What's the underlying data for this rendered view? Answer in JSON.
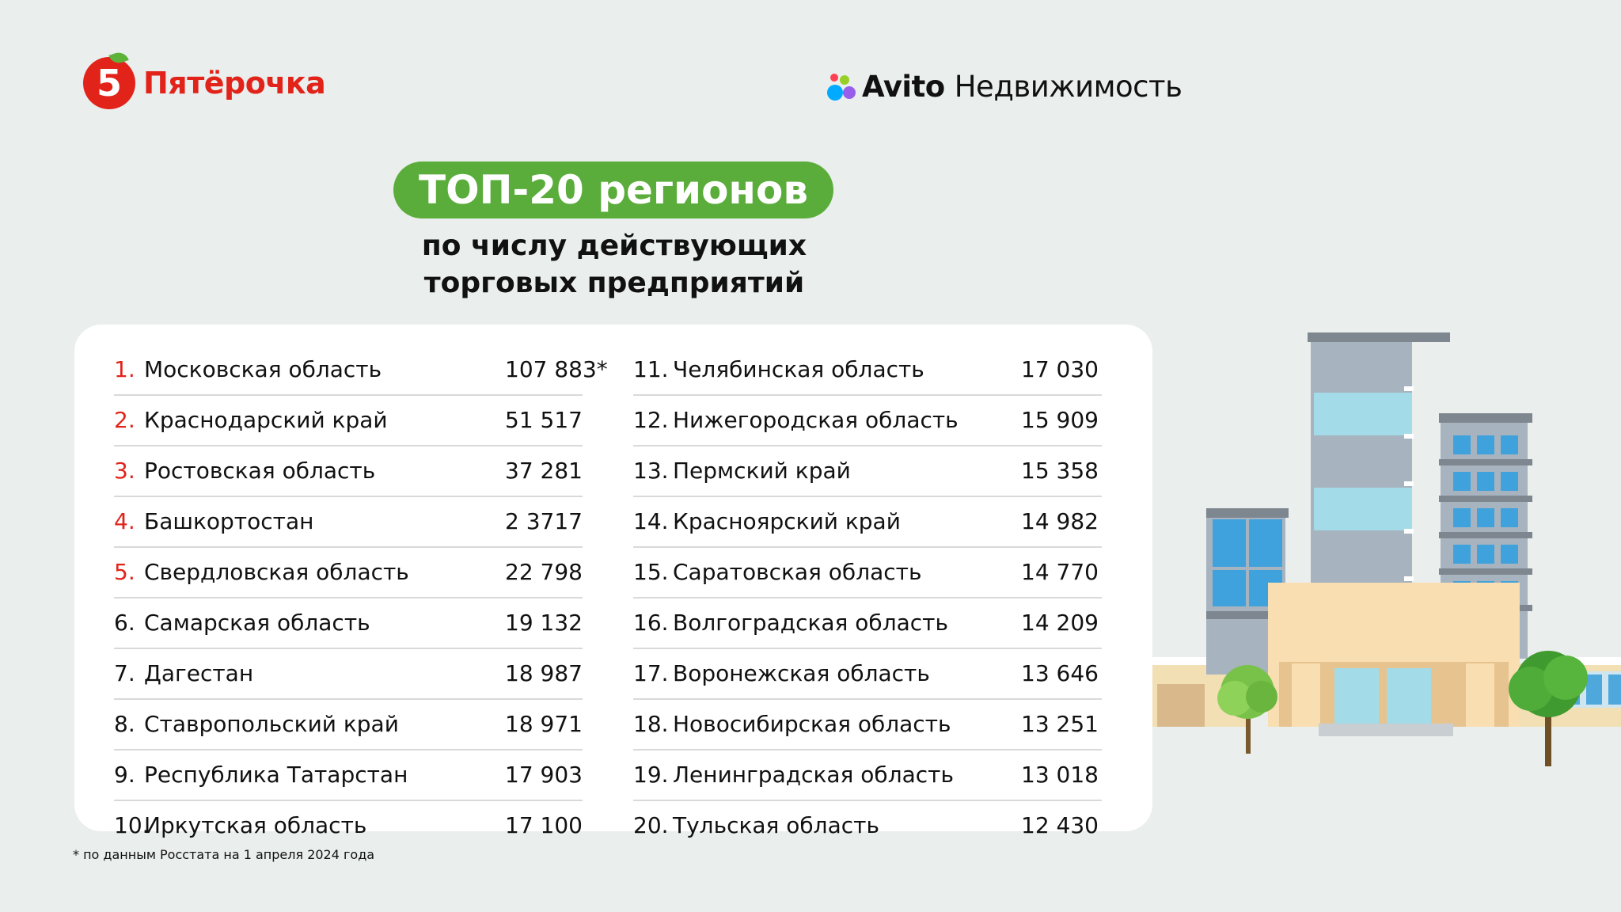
{
  "logos": {
    "pyaterochka": {
      "mark": "5",
      "name": "Пятёрочка"
    },
    "avito": {
      "brand": "Avito",
      "sub": "Недвижимость"
    }
  },
  "heading": {
    "badge": "ТОП-20 регионов",
    "subtitle_line1": "по числу действующих",
    "subtitle_line2": "торговых предприятий"
  },
  "colors": {
    "accent_green": "#5bad3b",
    "brand_red": "#e2231a",
    "background": "#eaeeed"
  },
  "regions_left": [
    {
      "rank": "1.",
      "name": "Московская область",
      "value": "107 883*",
      "rank_color": "red"
    },
    {
      "rank": "2.",
      "name": "Краснодарский край",
      "value": "51 517",
      "rank_color": "red"
    },
    {
      "rank": "3.",
      "name": "Ростовская область",
      "value": "37 281",
      "rank_color": "red"
    },
    {
      "rank": "4.",
      "name": "Башкортостан",
      "value": "2 3717",
      "rank_color": "red"
    },
    {
      "rank": "5.",
      "name": "Свердловская область",
      "value": "22 798",
      "rank_color": "red"
    },
    {
      "rank": "6.",
      "name": "Самарская область",
      "value": "19 132",
      "rank_color": "black"
    },
    {
      "rank": "7.",
      "name": "Дагестан",
      "value": "18 987",
      "rank_color": "black"
    },
    {
      "rank": "8.",
      "name": "Ставропольский край",
      "value": "18 971",
      "rank_color": "black"
    },
    {
      "rank": "9.",
      "name": "Республика Татарстан",
      "value": "17 903",
      "rank_color": "black"
    },
    {
      "rank": "10.",
      "name": "Иркутская область",
      "value": "17 100",
      "rank_color": "black"
    }
  ],
  "regions_right": [
    {
      "rank": "11.",
      "name": "Челябинская область",
      "value": "17 030"
    },
    {
      "rank": "12.",
      "name": "Нижегородская область",
      "value": "15 909"
    },
    {
      "rank": "13.",
      "name": "Пермский край",
      "value": "15 358"
    },
    {
      "rank": "14.",
      "name": "Красноярский край",
      "value": "14 982"
    },
    {
      "rank": "15.",
      "name": "Саратовская область",
      "value": "14 770"
    },
    {
      "rank": "16.",
      "name": "Волгоградская область",
      "value": "14 209"
    },
    {
      "rank": "17.",
      "name": "Воронежская область",
      "value": "13 646"
    },
    {
      "rank": "18.",
      "name": "Новосибирская область",
      "value": "13 251"
    },
    {
      "rank": "19.",
      "name": "Ленинградская область",
      "value": "13 018"
    },
    {
      "rank": "20.",
      "name": "Тульская область",
      "value": "12 430"
    }
  ],
  "footnote": "* по данным Росстата на 1 апреля 2024 года",
  "illustration": {
    "icon": "building-with-trees-icon"
  }
}
